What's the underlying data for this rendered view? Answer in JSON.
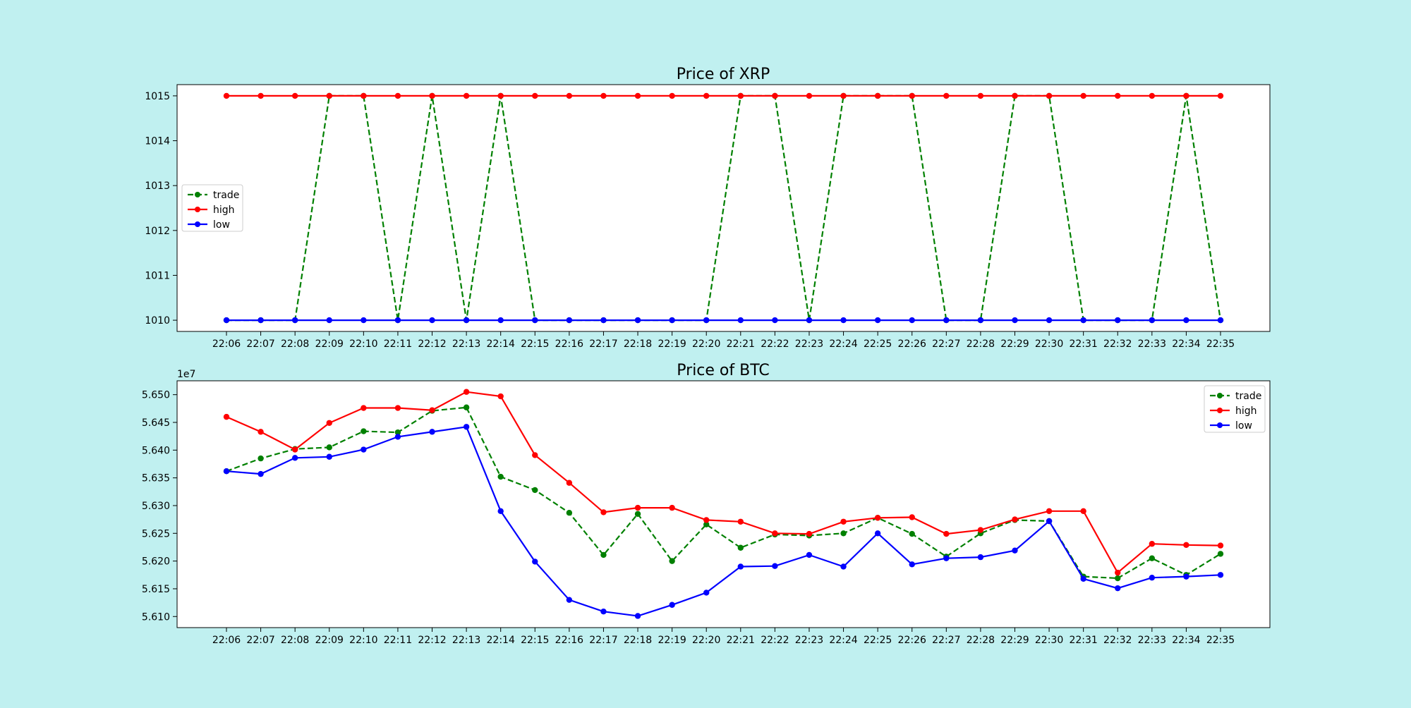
{
  "chart_data": [
    {
      "type": "line",
      "title": "Price of XRP",
      "xlabel": "",
      "ylabel": "",
      "x": [
        "22:06",
        "22:07",
        "22:08",
        "22:09",
        "22:10",
        "22:11",
        "22:12",
        "22:13",
        "22:14",
        "22:15",
        "22:16",
        "22:17",
        "22:18",
        "22:19",
        "22:20",
        "22:21",
        "22:22",
        "22:23",
        "22:24",
        "22:25",
        "22:26",
        "22:27",
        "22:28",
        "22:29",
        "22:30",
        "22:31",
        "22:32",
        "22:33",
        "22:34",
        "22:35"
      ],
      "ylim": [
        1009.75,
        1015.25
      ],
      "yticks": [
        "1010",
        "1011",
        "1012",
        "1013",
        "1014",
        "1015"
      ],
      "y_tick_values": [
        1010,
        1011,
        1012,
        1013,
        1014,
        1015
      ],
      "offset_label": "",
      "legend_position": "center-left",
      "grid": false,
      "series": [
        {
          "name": "trade",
          "color": "#008000",
          "style": "dashed",
          "values": [
            1010,
            1010,
            1010,
            1015,
            1015,
            1010,
            1015,
            1010,
            1015,
            1010,
            1010,
            1010,
            1010,
            1010,
            1010,
            1015,
            1015,
            1010,
            1015,
            1015,
            1015,
            1010,
            1010,
            1015,
            1015,
            1010,
            1010,
            1010,
            1015,
            1010
          ]
        },
        {
          "name": "high",
          "color": "#ff0000",
          "style": "solid",
          "values": [
            1015,
            1015,
            1015,
            1015,
            1015,
            1015,
            1015,
            1015,
            1015,
            1015,
            1015,
            1015,
            1015,
            1015,
            1015,
            1015,
            1015,
            1015,
            1015,
            1015,
            1015,
            1015,
            1015,
            1015,
            1015,
            1015,
            1015,
            1015,
            1015,
            1015
          ]
        },
        {
          "name": "low",
          "color": "#0000ff",
          "style": "solid",
          "values": [
            1010,
            1010,
            1010,
            1010,
            1010,
            1010,
            1010,
            1010,
            1010,
            1010,
            1010,
            1010,
            1010,
            1010,
            1010,
            1010,
            1010,
            1010,
            1010,
            1010,
            1010,
            1010,
            1010,
            1010,
            1010,
            1010,
            1010,
            1010,
            1010,
            1010
          ]
        }
      ]
    },
    {
      "type": "line",
      "title": "Price of BTC",
      "xlabel": "",
      "ylabel": "",
      "x": [
        "22:06",
        "22:07",
        "22:08",
        "22:09",
        "22:10",
        "22:11",
        "22:12",
        "22:13",
        "22:14",
        "22:15",
        "22:16",
        "22:17",
        "22:18",
        "22:19",
        "22:20",
        "22:21",
        "22:22",
        "22:23",
        "22:24",
        "22:25",
        "22:26",
        "22:27",
        "22:28",
        "22:29",
        "22:30",
        "22:31",
        "22:32",
        "22:33",
        "22:34",
        "22:35"
      ],
      "ylim": [
        56080000,
        56525000
      ],
      "yticks": [
        "5.610",
        "5.615",
        "5.620",
        "5.625",
        "5.630",
        "5.635",
        "5.640",
        "5.645",
        "5.650"
      ],
      "y_tick_values": [
        56100000,
        56150000,
        56200000,
        56250000,
        56300000,
        56350000,
        56400000,
        56450000,
        56500000
      ],
      "offset_label": "1e7",
      "legend_position": "upper-right",
      "grid": false,
      "series": [
        {
          "name": "trade",
          "color": "#008000",
          "style": "dashed",
          "values": [
            56362000,
            56385000,
            56402000,
            56405000,
            56434000,
            56432000,
            56471000,
            56477000,
            56352000,
            56328000,
            56287000,
            56211000,
            56285000,
            56200000,
            56266000,
            56224000,
            56248000,
            56246000,
            56250000,
            56278000,
            56249000,
            56208000,
            56250000,
            56274000,
            56272000,
            56172000,
            56169000,
            56205000,
            56175000,
            56213000
          ]
        },
        {
          "name": "high",
          "color": "#ff0000",
          "style": "solid",
          "values": [
            56460000,
            56433000,
            56401000,
            56449000,
            56476000,
            56476000,
            56472000,
            56505000,
            56497000,
            56391000,
            56341000,
            56288000,
            56296000,
            56296000,
            56274000,
            56271000,
            56250000,
            56249000,
            56271000,
            56278000,
            56279000,
            56249000,
            56256000,
            56275000,
            56290000,
            56290000,
            56179000,
            56231000,
            56229000,
            56228000
          ]
        },
        {
          "name": "low",
          "color": "#0000ff",
          "style": "solid",
          "values": [
            56362000,
            56357000,
            56386000,
            56388000,
            56401000,
            56424000,
            56433000,
            56442000,
            56290000,
            56199000,
            56130000,
            56109000,
            56101000,
            56121000,
            56143000,
            56190000,
            56191000,
            56211000,
            56190000,
            56250000,
            56194000,
            56205000,
            56207000,
            56219000,
            56272000,
            56168000,
            56151000,
            56170000,
            56172000,
            56175000
          ]
        }
      ]
    }
  ]
}
